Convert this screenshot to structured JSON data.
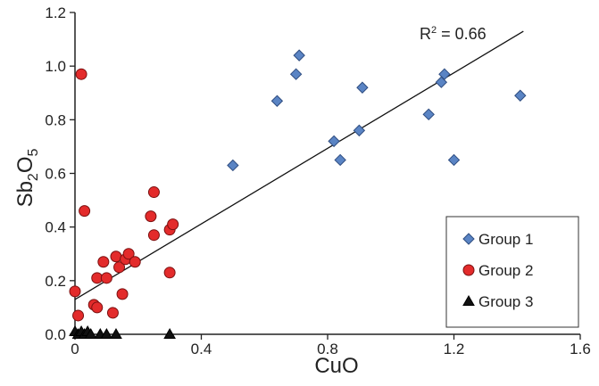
{
  "chart_data": {
    "type": "scatter",
    "xlabel": "CuO",
    "ylabel": "Sb2O5",
    "ylabel_parts": {
      "base": "Sb",
      "sub1": "2",
      "mid": "O",
      "sub2": "5"
    },
    "xlim": [
      0,
      1.6
    ],
    "ylim": [
      0,
      1.2
    ],
    "x_ticks": [
      0,
      0.4,
      0.8,
      1.2,
      1.6
    ],
    "x_tick_labels": [
      "0",
      "0.4",
      "0.8",
      "1.2",
      "1.6"
    ],
    "y_ticks": [
      0,
      0.2,
      0.4,
      0.6,
      0.8,
      1.0,
      1.2
    ],
    "y_tick_labels": [
      "0.0",
      "0.2",
      "0.4",
      "0.6",
      "0.8",
      "1.0",
      "1.2"
    ],
    "grid": false,
    "legend_position": "bottom-right",
    "annotation": {
      "text_main": "R",
      "text_sup": "2",
      "text_rest": " = 0.66"
    },
    "trendline": {
      "x": [
        0,
        1.42
      ],
      "y": [
        0.13,
        1.13
      ]
    },
    "series": [
      {
        "name": "Group 1",
        "marker": "diamond",
        "color": "#5a84c4",
        "edge": "#2f4d80",
        "points": [
          [
            0.5,
            0.63
          ],
          [
            0.64,
            0.87
          ],
          [
            0.7,
            0.97
          ],
          [
            0.71,
            1.04
          ],
          [
            0.82,
            0.72
          ],
          [
            0.84,
            0.65
          ],
          [
            0.9,
            0.76
          ],
          [
            0.91,
            0.92
          ],
          [
            1.12,
            0.82
          ],
          [
            1.16,
            0.94
          ],
          [
            1.17,
            0.97
          ],
          [
            1.2,
            0.65
          ],
          [
            1.41,
            0.89
          ]
        ]
      },
      {
        "name": "Group 2",
        "marker": "circle",
        "color": "#e32b2b",
        "edge": "#7a1010",
        "points": [
          [
            0.02,
            0.97
          ],
          [
            0.03,
            0.46
          ],
          [
            0.0,
            0.16
          ],
          [
            0.01,
            0.07
          ],
          [
            0.06,
            0.11
          ],
          [
            0.07,
            0.1
          ],
          [
            0.07,
            0.21
          ],
          [
            0.09,
            0.27
          ],
          [
            0.1,
            0.21
          ],
          [
            0.12,
            0.08
          ],
          [
            0.13,
            0.29
          ],
          [
            0.14,
            0.25
          ],
          [
            0.15,
            0.15
          ],
          [
            0.16,
            0.28
          ],
          [
            0.17,
            0.3
          ],
          [
            0.19,
            0.27
          ],
          [
            0.24,
            0.44
          ],
          [
            0.25,
            0.53
          ],
          [
            0.25,
            0.37
          ],
          [
            0.3,
            0.39
          ],
          [
            0.31,
            0.41
          ],
          [
            0.3,
            0.23
          ]
        ]
      },
      {
        "name": "Group 3",
        "marker": "triangle",
        "color": "#111111",
        "edge": "#000000",
        "points": [
          [
            0.0,
            0.01
          ],
          [
            0.01,
            0.0
          ],
          [
            0.02,
            0.01
          ],
          [
            0.03,
            0.0
          ],
          [
            0.04,
            0.01
          ],
          [
            0.05,
            0.0
          ],
          [
            0.08,
            0.0
          ],
          [
            0.1,
            0.0
          ],
          [
            0.13,
            0.0
          ],
          [
            0.3,
            0.0
          ]
        ]
      }
    ]
  }
}
